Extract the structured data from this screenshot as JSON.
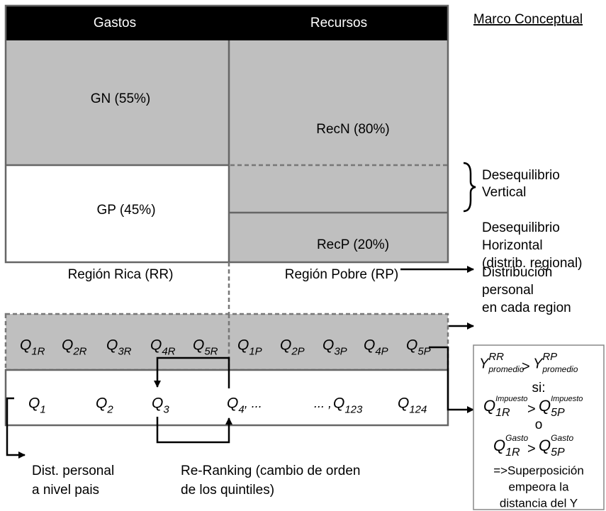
{
  "link": "Marco Conceptual",
  "columns": [
    "Gastos",
    "Recursos"
  ],
  "cells": {
    "gn": "GN (55%)",
    "gp": "GP (45%)",
    "recn": "RecN (80%)",
    "recp": "RecP (20%)"
  },
  "notes": {
    "vertical": [
      "Desequilibrio",
      "Vertical"
    ],
    "horizontal": [
      "Desequilibrio",
      "Horizontal",
      "(distrib. regional)"
    ],
    "personal": [
      "Distribución",
      "personal",
      "en cada region"
    ]
  },
  "regions": [
    "Región Rica (RR)",
    "Región Pobre (RP)"
  ],
  "quintiles": {
    "regional": [
      {
        "base": "Q",
        "sub": "1R"
      },
      {
        "base": "Q",
        "sub": "2R"
      },
      {
        "base": "Q",
        "sub": "3R"
      },
      {
        "base": "Q",
        "sub": "4R"
      },
      {
        "base": "Q",
        "sub": "5R"
      },
      {
        "base": "Q",
        "sub": "1P"
      },
      {
        "base": "Q",
        "sub": "2P"
      },
      {
        "base": "Q",
        "sub": "3P"
      },
      {
        "base": "Q",
        "sub": "4P"
      },
      {
        "base": "Q",
        "sub": "5P"
      }
    ],
    "national": [
      {
        "base": "Q",
        "sub": "1"
      },
      {
        "base": "Q",
        "sub": "2"
      },
      {
        "base": "Q",
        "sub": "3"
      },
      {
        "base": "Q",
        "sub": "4",
        "post": ", ..."
      },
      {
        "pre": "... ,",
        "base": "Q",
        "sub": "123"
      },
      {
        "base": "Q",
        "sub": "124"
      }
    ]
  },
  "captions": {
    "national": [
      "Dist. personal",
      "a nivel pais"
    ],
    "reranking": [
      "Re-Ranking (cambio de orden",
      "de los quintiles)"
    ]
  },
  "box": {
    "comparison": {
      "left": {
        "base": "Y",
        "sup": "RR",
        "sub": "promedio"
      },
      "op": ">",
      "right": {
        "base": "Y",
        "sup": "RP",
        "sub": "promedio"
      }
    },
    "condition": "si:",
    "alt1": {
      "left": {
        "base": "Q",
        "sup": "Impuesto",
        "sub": "1R"
      },
      "op": ">",
      "right": {
        "base": "Q",
        "sup": "Impuesto",
        "sub": "5P"
      }
    },
    "or": "o",
    "alt2": {
      "left": {
        "base": "Q",
        "sup": "Gasto",
        "sub": "1R"
      },
      "op": ">",
      "right": {
        "base": "Q",
        "sup": "Gasto",
        "sub": "5P"
      }
    },
    "conclusion": [
      "=>Superposición",
      "empeora la",
      "distancia del Y"
    ]
  }
}
